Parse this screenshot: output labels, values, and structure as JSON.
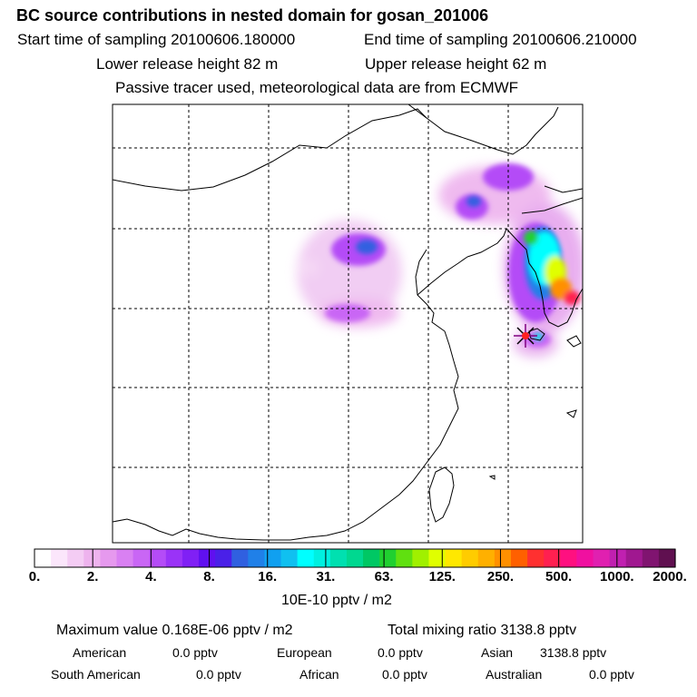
{
  "header": {
    "title": "BC  source contributions in nested domain for gosan_201006",
    "start_label": "Start time of sampling 20100606.180000",
    "end_label": "End time of sampling 20100606.210000",
    "lower_label": "Lower release height   82 m",
    "upper_label": "Upper release height   62 m",
    "note": "Passive tracer used, meteorological data are from ECMWF"
  },
  "chart_data": {
    "type": "heatmap",
    "colorbar": {
      "ticks": [
        "0.",
        "2.",
        "4.",
        "8.",
        "16.",
        "31.",
        "63.",
        "125.",
        "250.",
        "500.",
        "1000.",
        "2000."
      ],
      "units": "10E-10 pptv / m2",
      "colors": [
        "#ffffff",
        "#fbe6fb",
        "#f4ccf4",
        "#eeb3ee",
        "#e699ee",
        "#d980f2",
        "#c966f5",
        "#b44cf7",
        "#9a33f7",
        "#8020f5",
        "#6010f0",
        "#4a20e8",
        "#3060e0",
        "#2080e8",
        "#10a0f0",
        "#10c0f0",
        "#00ffff",
        "#00f0e0",
        "#00e0b0",
        "#00d890",
        "#00c864",
        "#20d030",
        "#60e010",
        "#a0f000",
        "#e0ff00",
        "#ffe800",
        "#ffcc00",
        "#ffb000",
        "#ff9000",
        "#ff6000",
        "#ff3030",
        "#ff2050",
        "#ff1080",
        "#f010a0",
        "#e020b0",
        "#c020b0",
        "#a01890",
        "#801470",
        "#601050"
      ]
    },
    "grid": true,
    "receptor": "gosan",
    "stats": {
      "max_label": "Maximum value  0.168E-06 pptv / m2",
      "total_label": "Total mixing ratio     3138.8 pptv"
    },
    "regions": [
      {
        "name": "American",
        "value": "0.0 pptv"
      },
      {
        "name": "European",
        "value": "0.0 pptv"
      },
      {
        "name": "Asian",
        "value": "3138.8 pptv"
      },
      {
        "name": "South American",
        "value": "0.0 pptv"
      },
      {
        "name": "African",
        "value": "0.0 pptv"
      },
      {
        "name": "Australian",
        "value": "0.0 pptv"
      }
    ]
  }
}
